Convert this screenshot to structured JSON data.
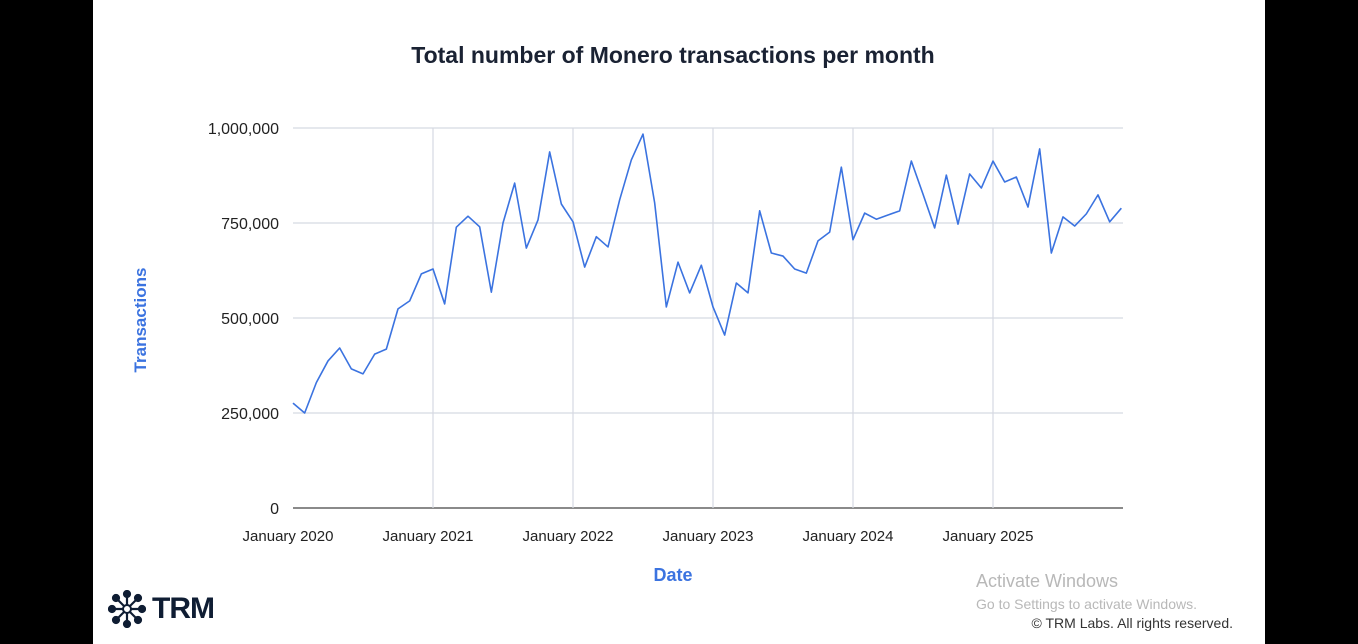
{
  "chart_data": {
    "type": "line",
    "title": "Total number of Monero transactions per month",
    "xlabel": "Date",
    "ylabel": "Transactions",
    "ylim": [
      0,
      1000000
    ],
    "yticks": [
      0,
      250000,
      500000,
      750000,
      1000000
    ],
    "ytick_labels": [
      "0",
      "250,000",
      "500,000",
      "750,000",
      "1,000,000"
    ],
    "xtick_labels": [
      "January 2020",
      "January 2021",
      "January 2022",
      "January 2023",
      "January 2024",
      "January 2025"
    ],
    "x_start": "2020-01",
    "x_end": "2025-12",
    "grid": true,
    "color": "#3b73e0",
    "values": [
      276000,
      250000,
      330000,
      387000,
      421000,
      366000,
      353000,
      405000,
      418000,
      524000,
      545000,
      616000,
      629000,
      537000,
      739000,
      768000,
      740000,
      568000,
      750000,
      855000,
      684000,
      758000,
      937000,
      800000,
      753000,
      634000,
      714000,
      687000,
      811000,
      916000,
      984000,
      803000,
      529000,
      647000,
      566000,
      639000,
      529000,
      455000,
      592000,
      566000,
      782000,
      671000,
      663000,
      629000,
      618000,
      703000,
      726000,
      897000,
      706000,
      776000,
      760000,
      771000,
      782000,
      913000,
      826000,
      737000,
      876000,
      747000,
      879000,
      842000,
      913000,
      858000,
      871000,
      792000,
      945000,
      671000,
      766000,
      742000,
      774000,
      824000,
      753000,
      789000
    ]
  },
  "footer": {
    "logo": "TRM",
    "copyright": "© TRM Labs. All rights reserved."
  },
  "watermark": {
    "line1": "Activate Windows",
    "line2": "Go to Settings to activate Windows."
  }
}
